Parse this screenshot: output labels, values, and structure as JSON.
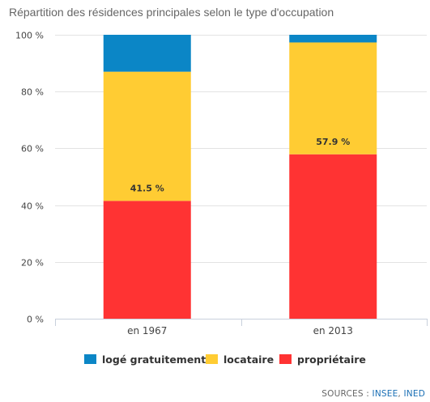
{
  "chart_data": {
    "type": "bar",
    "stacked": true,
    "title": "Répartition des résidences principales selon le type d'occupation",
    "categories": [
      "en 1967",
      "en 2013"
    ],
    "series": [
      {
        "name": "propriétaire",
        "color": "#ff3333",
        "values": [
          41.5,
          57.9
        ]
      },
      {
        "name": "locataire",
        "color": "#ffcc33",
        "values": [
          45.5,
          39.4
        ]
      },
      {
        "name": "logé gratuitement",
        "color": "#0b86c6",
        "values": [
          13.0,
          2.7
        ]
      }
    ],
    "data_labels": [
      {
        "category": "en 1967",
        "series": "propriétaire",
        "text": "41.5 %"
      },
      {
        "category": "en 2013",
        "series": "propriétaire",
        "text": "57.9 %"
      }
    ],
    "ylim": [
      0,
      100
    ],
    "yticks": [
      0,
      20,
      40,
      60,
      80,
      100
    ],
    "ytick_labels": [
      "0 %",
      "20 %",
      "40 %",
      "60 %",
      "80 %",
      "100 %"
    ],
    "grid": true,
    "legend_position": "bottom",
    "legend_order": [
      "logé gratuitement",
      "locataire",
      "propriétaire"
    ]
  },
  "sources": {
    "prefix": "SOURCES :",
    "links": [
      "INSEE",
      "INED"
    ],
    "separator": ","
  }
}
